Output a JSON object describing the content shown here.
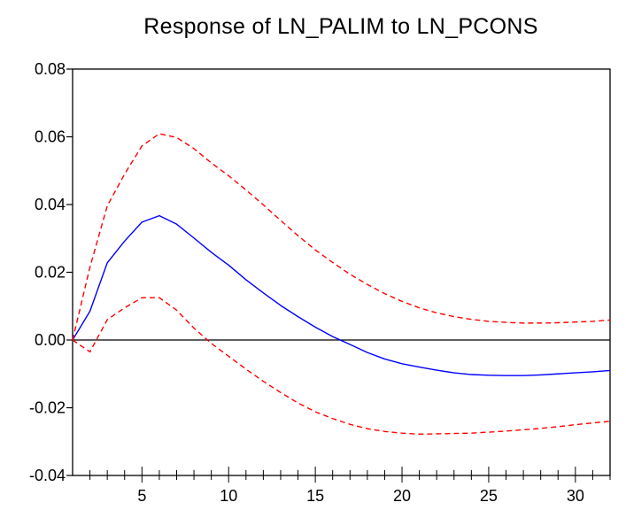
{
  "chart_data": {
    "type": "line",
    "title": "Response of  LN_PALIM to LN_PCONS",
    "xlim": [
      1,
      32
    ],
    "ylim": [
      -0.04,
      0.08
    ],
    "x_ticks": [
      5,
      10,
      15,
      20,
      25,
      30
    ],
    "x_tick_labels": [
      "5",
      "10",
      "15",
      "20",
      "25",
      "30"
    ],
    "y_ticks": [
      -0.04,
      -0.02,
      0.0,
      0.02,
      0.04,
      0.06,
      0.08
    ],
    "y_tick_labels": [
      "-0.04",
      "-0.02",
      "0.00",
      "0.02",
      "0.04",
      "0.06",
      "0.08"
    ],
    "zero_line": true,
    "grid": false,
    "x": [
      1,
      2,
      3,
      4,
      5,
      6,
      7,
      8,
      9,
      10,
      11,
      12,
      13,
      14,
      15,
      16,
      17,
      18,
      19,
      20,
      21,
      22,
      23,
      24,
      25,
      26,
      27,
      28,
      29,
      30,
      31,
      32
    ],
    "series": [
      {
        "role": "response",
        "color": "#0000ff",
        "dash": "solid",
        "values": [
          0.0,
          0.0085,
          0.0228,
          0.0292,
          0.0348,
          0.0367,
          0.0342,
          0.0301,
          0.0259,
          0.0221,
          0.0178,
          0.0139,
          0.0102,
          0.0069,
          0.0038,
          0.001,
          -0.0013,
          -0.0037,
          -0.0056,
          -0.007,
          -0.008,
          -0.0089,
          -0.0097,
          -0.0102,
          -0.0104,
          -0.0105,
          -0.0105,
          -0.0103,
          -0.01,
          -0.0097,
          -0.0094,
          -0.009
        ]
      },
      {
        "role": "upper",
        "color": "#ff0000",
        "dash": "dashed",
        "values": [
          0.0,
          0.0215,
          0.0396,
          0.049,
          0.0573,
          0.0609,
          0.0598,
          0.0565,
          0.0523,
          0.0485,
          0.0443,
          0.0399,
          0.0353,
          0.0308,
          0.0266,
          0.0229,
          0.0194,
          0.0164,
          0.0137,
          0.0114,
          0.0095,
          0.008,
          0.0069,
          0.0061,
          0.0055,
          0.0052,
          0.005,
          0.005,
          0.0051,
          0.0053,
          0.0055,
          0.0059
        ]
      },
      {
        "role": "lower",
        "color": "#ff0000",
        "dash": "dashed",
        "values": [
          0.0,
          -0.0035,
          0.006,
          0.0095,
          0.0125,
          0.0125,
          0.0088,
          0.0035,
          -0.001,
          -0.0048,
          -0.0086,
          -0.0122,
          -0.0155,
          -0.0186,
          -0.0212,
          -0.0232,
          -0.0249,
          -0.0262,
          -0.027,
          -0.0275,
          -0.0278,
          -0.0277,
          -0.0276,
          -0.0275,
          -0.0272,
          -0.0269,
          -0.0265,
          -0.0261,
          -0.0256,
          -0.025,
          -0.0245,
          -0.024
        ]
      }
    ]
  }
}
